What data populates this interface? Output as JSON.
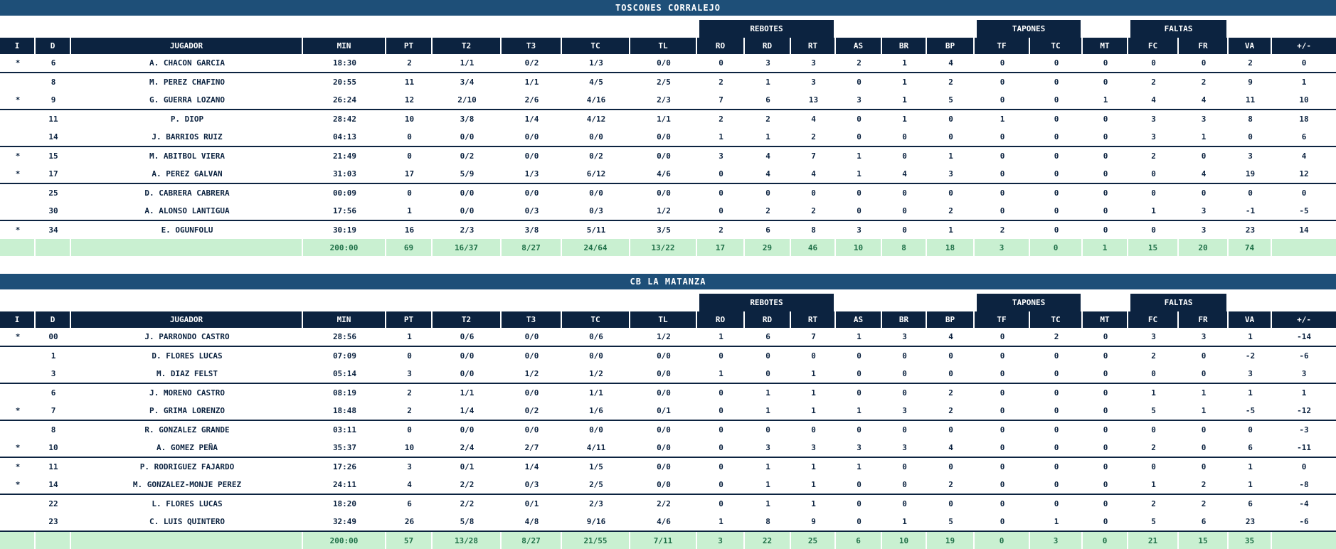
{
  "colors": {
    "team_bar": "#1e4f78",
    "header": "#0c2340",
    "text": "#0c2340",
    "totals_bg": "#c9f0d1",
    "totals_text": "#1f7048"
  },
  "columns": [
    "I",
    "D",
    "JUGADOR",
    "MIN",
    "PT",
    "T2",
    "T3",
    "TC",
    "TL",
    "RO",
    "RD",
    "RT",
    "AS",
    "BR",
    "BP",
    "TF",
    "TC",
    "MT",
    "FC",
    "FR",
    "VA",
    "+/-"
  ],
  "header_groups": [
    "REBOTES",
    "TAPONES",
    "FALTAS"
  ],
  "teams": [
    {
      "name": "TOSCONES CORRALEJO",
      "players": [
        [
          "*",
          "6",
          "A. CHACON GARCIA",
          "18:30",
          "2",
          "1/1",
          "0/2",
          "1/3",
          "0/0",
          "0",
          "3",
          "3",
          "2",
          "1",
          "4",
          "0",
          "0",
          "0",
          "0",
          "0",
          "2",
          "0"
        ],
        [
          "",
          "8",
          "M. PEREZ CHAFINO",
          "20:55",
          "11",
          "3/4",
          "1/1",
          "4/5",
          "2/5",
          "2",
          "1",
          "3",
          "0",
          "1",
          "2",
          "0",
          "0",
          "0",
          "2",
          "2",
          "9",
          "1"
        ],
        [
          "*",
          "9",
          "G. GUERRA LOZANO",
          "26:24",
          "12",
          "2/10",
          "2/6",
          "4/16",
          "2/3",
          "7",
          "6",
          "13",
          "3",
          "1",
          "5",
          "0",
          "0",
          "1",
          "4",
          "4",
          "11",
          "10"
        ],
        [
          "",
          "11",
          "P. DIOP",
          "28:42",
          "10",
          "3/8",
          "1/4",
          "4/12",
          "1/1",
          "2",
          "2",
          "4",
          "0",
          "1",
          "0",
          "1",
          "0",
          "0",
          "3",
          "3",
          "8",
          "18"
        ],
        [
          "",
          "14",
          "J. BARRIOS RUIZ",
          "04:13",
          "0",
          "0/0",
          "0/0",
          "0/0",
          "0/0",
          "1",
          "1",
          "2",
          "0",
          "0",
          "0",
          "0",
          "0",
          "0",
          "3",
          "1",
          "0",
          "6"
        ],
        [
          "*",
          "15",
          "M. ABITBOL VIERA",
          "21:49",
          "0",
          "0/2",
          "0/0",
          "0/2",
          "0/0",
          "3",
          "4",
          "7",
          "1",
          "0",
          "1",
          "0",
          "0",
          "0",
          "2",
          "0",
          "3",
          "4"
        ],
        [
          "*",
          "17",
          "A. PEREZ GALVAN",
          "31:03",
          "17",
          "5/9",
          "1/3",
          "6/12",
          "4/6",
          "0",
          "4",
          "4",
          "1",
          "4",
          "3",
          "0",
          "0",
          "0",
          "0",
          "4",
          "19",
          "12"
        ],
        [
          "",
          "25",
          "D. CABRERA CABRERA",
          "00:09",
          "0",
          "0/0",
          "0/0",
          "0/0",
          "0/0",
          "0",
          "0",
          "0",
          "0",
          "0",
          "0",
          "0",
          "0",
          "0",
          "0",
          "0",
          "0",
          "0"
        ],
        [
          "",
          "30",
          "A. ALONSO LANTIGUA",
          "17:56",
          "1",
          "0/0",
          "0/3",
          "0/3",
          "1/2",
          "0",
          "2",
          "2",
          "0",
          "0",
          "2",
          "0",
          "0",
          "0",
          "1",
          "3",
          "-1",
          "-5"
        ],
        [
          "*",
          "34",
          "E. OGUNFOLU",
          "30:19",
          "16",
          "2/3",
          "3/8",
          "5/11",
          "3/5",
          "2",
          "6",
          "8",
          "3",
          "0",
          "1",
          "2",
          "0",
          "0",
          "0",
          "3",
          "23",
          "14"
        ]
      ],
      "totals": [
        "",
        "",
        "",
        "200:00",
        "69",
        "16/37",
        "8/27",
        "24/64",
        "13/22",
        "17",
        "29",
        "46",
        "10",
        "8",
        "18",
        "3",
        "0",
        "1",
        "15",
        "20",
        "74",
        ""
      ]
    },
    {
      "name": "CB LA MATANZA",
      "players": [
        [
          "*",
          "00",
          "J. PARRONDO CASTRO",
          "28:56",
          "1",
          "0/6",
          "0/0",
          "0/6",
          "1/2",
          "1",
          "6",
          "7",
          "1",
          "3",
          "4",
          "0",
          "2",
          "0",
          "3",
          "3",
          "1",
          "-14"
        ],
        [
          "",
          "1",
          "D. FLORES LUCAS",
          "07:09",
          "0",
          "0/0",
          "0/0",
          "0/0",
          "0/0",
          "0",
          "0",
          "0",
          "0",
          "0",
          "0",
          "0",
          "0",
          "0",
          "2",
          "0",
          "-2",
          "-6"
        ],
        [
          "",
          "3",
          "M. DIAZ FELST",
          "05:14",
          "3",
          "0/0",
          "1/2",
          "1/2",
          "0/0",
          "1",
          "0",
          "1",
          "0",
          "0",
          "0",
          "0",
          "0",
          "0",
          "0",
          "0",
          "3",
          "3"
        ],
        [
          "",
          "6",
          "J. MORENO CASTRO",
          "08:19",
          "2",
          "1/1",
          "0/0",
          "1/1",
          "0/0",
          "0",
          "1",
          "1",
          "0",
          "0",
          "2",
          "0",
          "0",
          "0",
          "1",
          "1",
          "1",
          "1"
        ],
        [
          "*",
          "7",
          "P. GRIMA LORENZO",
          "18:48",
          "2",
          "1/4",
          "0/2",
          "1/6",
          "0/1",
          "0",
          "1",
          "1",
          "1",
          "3",
          "2",
          "0",
          "0",
          "0",
          "5",
          "1",
          "-5",
          "-12"
        ],
        [
          "",
          "8",
          "R. GONZALEZ GRANDE",
          "03:11",
          "0",
          "0/0",
          "0/0",
          "0/0",
          "0/0",
          "0",
          "0",
          "0",
          "0",
          "0",
          "0",
          "0",
          "0",
          "0",
          "0",
          "0",
          "0",
          "-3"
        ],
        [
          "*",
          "10",
          "A. GOMEZ PEÑA",
          "35:37",
          "10",
          "2/4",
          "2/7",
          "4/11",
          "0/0",
          "0",
          "3",
          "3",
          "3",
          "3",
          "4",
          "0",
          "0",
          "0",
          "2",
          "0",
          "6",
          "-11"
        ],
        [
          "*",
          "11",
          "P. RODRIGUEZ FAJARDO",
          "17:26",
          "3",
          "0/1",
          "1/4",
          "1/5",
          "0/0",
          "0",
          "1",
          "1",
          "1",
          "0",
          "0",
          "0",
          "0",
          "0",
          "0",
          "0",
          "1",
          "0"
        ],
        [
          "*",
          "14",
          "M. GONZALEZ-MONJE PEREZ",
          "24:11",
          "4",
          "2/2",
          "0/3",
          "2/5",
          "0/0",
          "0",
          "1",
          "1",
          "0",
          "0",
          "2",
          "0",
          "0",
          "0",
          "1",
          "2",
          "1",
          "-8"
        ],
        [
          "",
          "22",
          "L. FLORES LUCAS",
          "18:20",
          "6",
          "2/2",
          "0/1",
          "2/3",
          "2/2",
          "0",
          "1",
          "1",
          "0",
          "0",
          "0",
          "0",
          "0",
          "0",
          "2",
          "2",
          "6",
          "-4"
        ],
        [
          "",
          "23",
          "C. LUIS QUINTERO",
          "32:49",
          "26",
          "5/8",
          "4/8",
          "9/16",
          "4/6",
          "1",
          "8",
          "9",
          "0",
          "1",
          "5",
          "0",
          "1",
          "0",
          "5",
          "6",
          "23",
          "-6"
        ]
      ],
      "totals": [
        "",
        "",
        "",
        "200:00",
        "57",
        "13/28",
        "8/27",
        "21/55",
        "7/11",
        "3",
        "22",
        "25",
        "6",
        "10",
        "19",
        "0",
        "3",
        "0",
        "21",
        "15",
        "35",
        ""
      ]
    }
  ]
}
